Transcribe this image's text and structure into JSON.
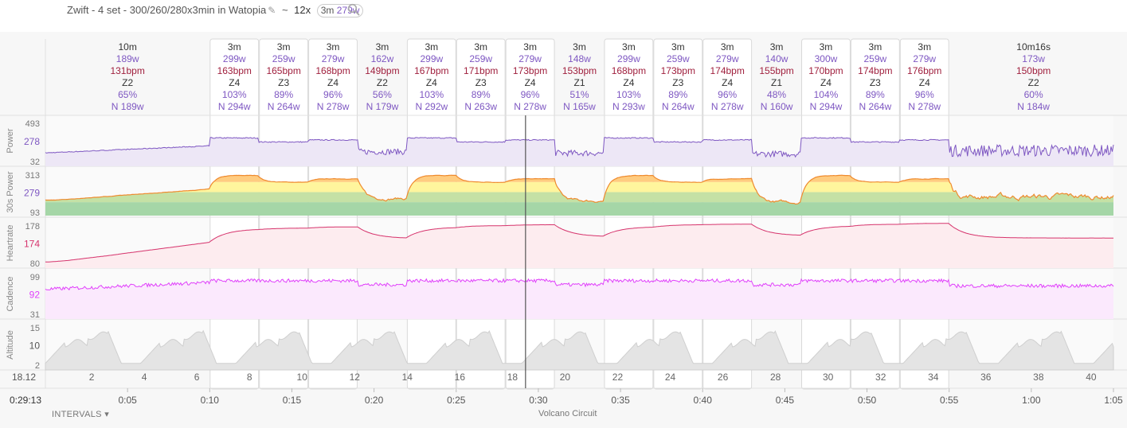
{
  "header": {
    "title": "Zwift - 4 set - 300/260/280x3min in Watopia",
    "tilde": "~",
    "interval_count": "12x",
    "badge_dur": "3m",
    "badge_power": "279w"
  },
  "colors": {
    "power": "#7e57c2",
    "heartrate": "#d6336c",
    "cadence": "#e040fb",
    "altitude": "#c8c8c8",
    "grid": "#e6e6e6"
  },
  "footer": {
    "intervals_label": "INTERVALS",
    "route": "Volcano Circuit",
    "cursor_time": "0:29:13",
    "cursor_dist": "18.12"
  },
  "chart_data": {
    "type": "line",
    "x_unit": "minutes",
    "x_range": [
      0,
      65
    ],
    "time_ticks": [
      "0:05",
      "0:10",
      "0:15",
      "0:20",
      "0:25",
      "0:30",
      "0:35",
      "0:40",
      "0:45",
      "0:50",
      "0:55",
      "1:00",
      "1:05"
    ],
    "distance_ticks": [
      "2",
      "4",
      "6",
      "8",
      "10",
      "12",
      "14",
      "16",
      "18",
      "20",
      "22",
      "24",
      "26",
      "28",
      "30",
      "32",
      "34",
      "36",
      "38",
      "40"
    ],
    "intervals": [
      {
        "start": 0,
        "end": 10,
        "dur": "10m",
        "power": "189w",
        "hr": "131bpm",
        "zone": "Z2",
        "pct": "65%",
        "np": "N 189w",
        "hl": false
      },
      {
        "start": 10,
        "end": 13,
        "dur": "3m",
        "power": "299w",
        "hr": "163bpm",
        "zone": "Z4",
        "pct": "103%",
        "np": "N 294w",
        "hl": true
      },
      {
        "start": 13,
        "end": 16,
        "dur": "3m",
        "power": "259w",
        "hr": "165bpm",
        "zone": "Z3",
        "pct": "89%",
        "np": "N 264w",
        "hl": true
      },
      {
        "start": 16,
        "end": 19,
        "dur": "3m",
        "power": "279w",
        "hr": "168bpm",
        "zone": "Z4",
        "pct": "96%",
        "np": "N 278w",
        "hl": true
      },
      {
        "start": 19,
        "end": 22,
        "dur": "3m",
        "power": "162w",
        "hr": "149bpm",
        "zone": "Z2",
        "pct": "56%",
        "np": "N 179w",
        "hl": false
      },
      {
        "start": 22,
        "end": 25,
        "dur": "3m",
        "power": "299w",
        "hr": "167bpm",
        "zone": "Z4",
        "pct": "103%",
        "np": "N 292w",
        "hl": true
      },
      {
        "start": 25,
        "end": 28,
        "dur": "3m",
        "power": "259w",
        "hr": "171bpm",
        "zone": "Z3",
        "pct": "89%",
        "np": "N 263w",
        "hl": true
      },
      {
        "start": 28,
        "end": 31,
        "dur": "3m",
        "power": "279w",
        "hr": "173bpm",
        "zone": "Z4",
        "pct": "96%",
        "np": "N 278w",
        "hl": true
      },
      {
        "start": 31,
        "end": 34,
        "dur": "3m",
        "power": "148w",
        "hr": "153bpm",
        "zone": "Z1",
        "pct": "51%",
        "np": "N 165w",
        "hl": false
      },
      {
        "start": 34,
        "end": 37,
        "dur": "3m",
        "power": "299w",
        "hr": "168bpm",
        "zone": "Z4",
        "pct": "103%",
        "np": "N 293w",
        "hl": true
      },
      {
        "start": 37,
        "end": 40,
        "dur": "3m",
        "power": "259w",
        "hr": "173bpm",
        "zone": "Z3",
        "pct": "89%",
        "np": "N 264w",
        "hl": true
      },
      {
        "start": 40,
        "end": 43,
        "dur": "3m",
        "power": "279w",
        "hr": "174bpm",
        "zone": "Z4",
        "pct": "96%",
        "np": "N 278w",
        "hl": true
      },
      {
        "start": 43,
        "end": 46,
        "dur": "3m",
        "power": "140w",
        "hr": "155bpm",
        "zone": "Z1",
        "pct": "48%",
        "np": "N 160w",
        "hl": false
      },
      {
        "start": 46,
        "end": 49,
        "dur": "3m",
        "power": "300w",
        "hr": "170bpm",
        "zone": "Z4",
        "pct": "104%",
        "np": "N 294w",
        "hl": true
      },
      {
        "start": 49,
        "end": 52,
        "dur": "3m",
        "power": "259w",
        "hr": "174bpm",
        "zone": "Z3",
        "pct": "89%",
        "np": "N 264w",
        "hl": true
      },
      {
        "start": 52,
        "end": 55,
        "dur": "3m",
        "power": "279w",
        "hr": "176bpm",
        "zone": "Z4",
        "pct": "96%",
        "np": "N 278w",
        "hl": true
      },
      {
        "start": 55,
        "end": 65.27,
        "dur": "10m16s",
        "power": "173w",
        "hr": "150bpm",
        "zone": "Z2",
        "pct": "60%",
        "np": "N 184w",
        "hl": false
      }
    ],
    "cursor_x": 29.22,
    "panels": [
      {
        "key": "power",
        "label": "Power",
        "ticks": [
          "493",
          "278",
          "32"
        ],
        "current": "278",
        "range": [
          32,
          493
        ]
      },
      {
        "key": "power30",
        "label": "30s Power",
        "ticks": [
          "313",
          "279",
          "93"
        ],
        "current": "279",
        "range": [
          60,
          330
        ]
      },
      {
        "key": "heartrate",
        "label": "Heartrate",
        "ticks": [
          "178",
          "174",
          "80"
        ],
        "current": "174",
        "range": [
          80,
          185
        ]
      },
      {
        "key": "cadence",
        "label": "Cadence",
        "ticks": [
          "99",
          "92",
          "31"
        ],
        "current": "92",
        "range": [
          31,
          110
        ]
      },
      {
        "key": "altitude",
        "label": "Altitude",
        "ticks": [
          "15",
          "10",
          "2"
        ],
        "current": "10",
        "range": [
          0,
          18
        ]
      }
    ],
    "grid": true
  }
}
